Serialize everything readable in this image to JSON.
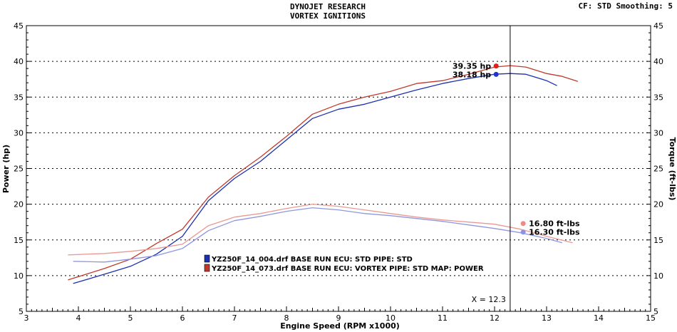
{
  "header": {
    "title_line1": "DYNOJET RESEARCH",
    "title_line2": "VORTEX IGNITIONS",
    "cf_label": "CF: STD",
    "smoothing_label": "Smoothing: 5"
  },
  "chart_data": {
    "type": "line",
    "xlabel": "Engine Speed (RPM x1000)",
    "ylabel_left": "Power (hp)",
    "ylabel_right": "Torque (ft-lbs)",
    "xlim": [
      3,
      15
    ],
    "ylim": [
      5,
      45
    ],
    "x_ticks": [
      3,
      4,
      5,
      6,
      7,
      8,
      9,
      10,
      11,
      12,
      13,
      14,
      15
    ],
    "y_ticks": [
      5,
      10,
      15,
      20,
      25,
      30,
      35,
      40,
      45
    ],
    "grid": true,
    "legend_position": "center-left",
    "cursor": {
      "x": 12.3,
      "label": "X = 12.3"
    },
    "series": [
      {
        "name": "YZ250F_14_004.drf BASE RUN ECU: STD PIPE: STD",
        "quantity": "power",
        "color": "#1c2fb0",
        "x": [
          3.9,
          4.5,
          5.0,
          5.5,
          6.0,
          6.5,
          7.0,
          7.5,
          8.0,
          8.5,
          9.0,
          9.5,
          10.0,
          10.5,
          11.0,
          11.5,
          12.0,
          12.3,
          12.6,
          13.0,
          13.2
        ],
        "y": [
          8.9,
          10.2,
          11.3,
          13.0,
          15.5,
          20.5,
          23.6,
          26.0,
          29.0,
          32.0,
          33.3,
          34.0,
          35.0,
          36.0,
          36.9,
          37.6,
          38.2,
          38.3,
          38.2,
          37.3,
          36.6
        ]
      },
      {
        "name": "YZ250F_14_073.drf BASE RUN ECU: VORTEX PIPE: STD MAP: POWER",
        "quantity": "power",
        "color": "#c0392b",
        "x": [
          3.8,
          4.5,
          5.0,
          5.5,
          6.0,
          6.5,
          7.0,
          7.5,
          8.0,
          8.5,
          9.0,
          9.5,
          10.0,
          10.5,
          11.0,
          11.5,
          12.0,
          12.3,
          12.6,
          13.0,
          13.3,
          13.6
        ],
        "y": [
          9.4,
          11.0,
          12.3,
          14.5,
          16.5,
          21.0,
          24.0,
          26.6,
          29.5,
          32.6,
          34.0,
          35.0,
          35.8,
          36.9,
          37.3,
          38.2,
          39.2,
          39.4,
          39.2,
          38.3,
          37.9,
          37.2
        ]
      },
      {
        "name": "YZ250F_14_004.drf BASE RUN ECU: STD PIPE: STD",
        "quantity": "torque",
        "color": "#8f96e0",
        "x": [
          3.9,
          4.5,
          5.0,
          5.5,
          6.0,
          6.5,
          7.0,
          7.5,
          8.0,
          8.5,
          9.0,
          9.5,
          10.0,
          10.5,
          11.0,
          11.5,
          12.0,
          12.5,
          13.0,
          13.3
        ],
        "y": [
          12.0,
          11.9,
          12.3,
          12.8,
          13.8,
          16.3,
          17.7,
          18.3,
          19.0,
          19.5,
          19.2,
          18.7,
          18.4,
          18.0,
          17.6,
          17.1,
          16.6,
          16.0,
          15.2,
          14.6
        ]
      },
      {
        "name": "YZ250F_14_073.drf BASE RUN ECU: VORTEX PIPE: STD MAP: POWER",
        "quantity": "torque",
        "color": "#e89a92",
        "x": [
          3.8,
          4.5,
          5.0,
          5.5,
          6.0,
          6.5,
          7.0,
          7.5,
          8.0,
          8.5,
          9.0,
          9.5,
          10.0,
          10.5,
          11.0,
          11.5,
          12.0,
          12.5,
          13.0,
          13.5
        ],
        "y": [
          12.9,
          13.1,
          13.4,
          13.8,
          14.4,
          17.0,
          18.2,
          18.7,
          19.4,
          20.0,
          19.7,
          19.2,
          18.7,
          18.2,
          17.8,
          17.5,
          17.2,
          16.5,
          15.5,
          14.6
        ]
      }
    ],
    "annotations": [
      {
        "text": "39.35 hp",
        "x": 12.03,
        "y": 39.35,
        "marker_color": "#e0201a",
        "side": "left"
      },
      {
        "text": "38.18 hp",
        "x": 12.03,
        "y": 38.18,
        "marker_color": "#2233cc",
        "side": "left"
      },
      {
        "text": "16.80 ft-lbs",
        "x": 12.55,
        "y": 17.3,
        "marker_color": "#f08a82",
        "side": "right"
      },
      {
        "text": "16.30 ft-lbs",
        "x": 12.55,
        "y": 16.1,
        "marker_color": "#8a93e8",
        "side": "right"
      }
    ],
    "legend": [
      {
        "text": "YZ250F_14_004.drf BASE RUN ECU: STD PIPE: STD",
        "color": "#1c2fb0"
      },
      {
        "text": "YZ250F_14_073.drf BASE RUN ECU: VORTEX PIPE: STD MAP: POWER",
        "color": "#c0392b"
      }
    ]
  }
}
